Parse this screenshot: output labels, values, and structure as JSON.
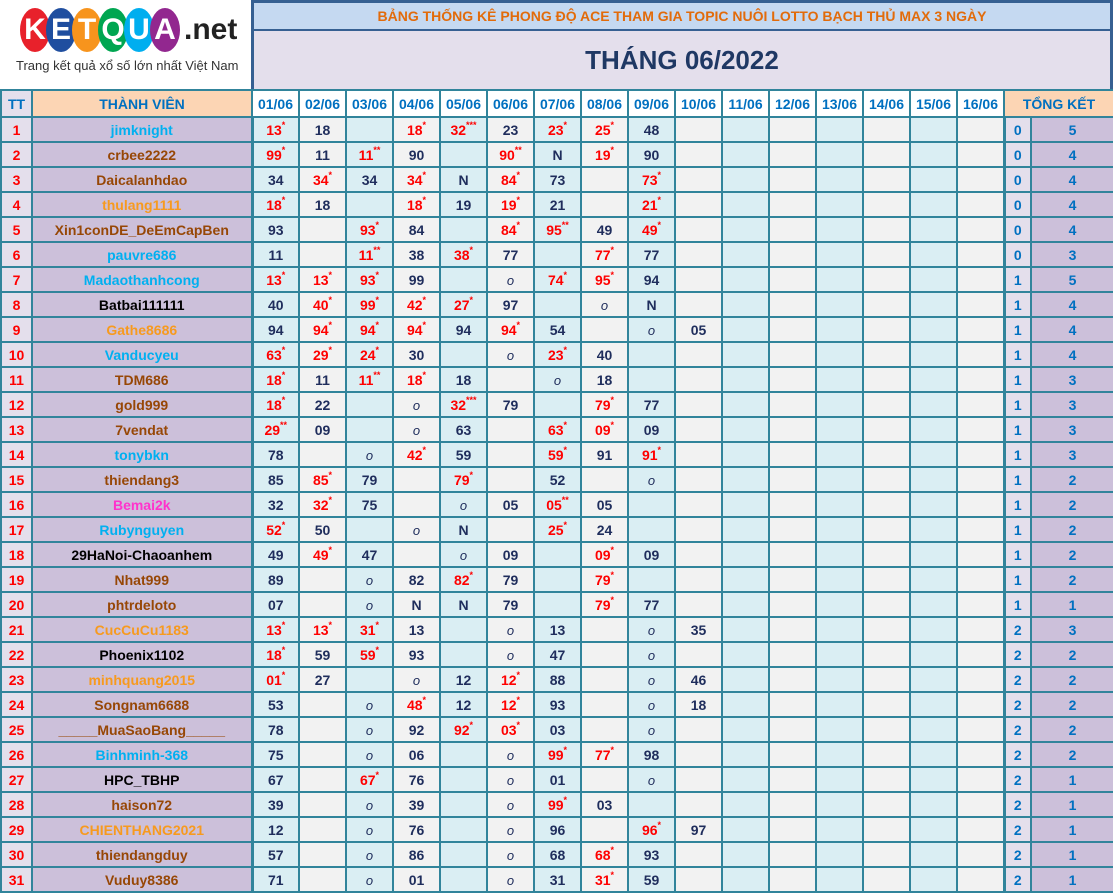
{
  "logo": {
    "letters": [
      "K",
      "E",
      "T",
      "Q",
      "U",
      "A"
    ],
    "letter_colors": [
      "#e8212b",
      "#1f4e9f",
      "#f7941d",
      "#00a651",
      "#00aeef",
      "#92278f"
    ],
    "suffix": ".net",
    "tagline": "Trang kết quả xổ số lớn nhất Việt Nam"
  },
  "header": {
    "title": "BẢNG THỐNG KÊ PHONG ĐỘ ACE THAM GIA TOPIC NUÔI LOTTO BẠCH THỦ MAX 3 NGÀY",
    "month": "THÁNG 06/2022"
  },
  "columns": {
    "tt": "TT",
    "member": "THÀNH VIÊN",
    "dates": [
      "01/06",
      "02/06",
      "03/06",
      "04/06",
      "05/06",
      "06/06",
      "07/06",
      "08/06",
      "09/06",
      "10/06",
      "11/06",
      "12/06",
      "13/06",
      "14/06",
      "15/06",
      "16/06"
    ],
    "summary": "TỔNG KẾT"
  },
  "name_colors": {
    "cyan": "#00b0f0",
    "brown": "#974706",
    "orange": "#f79a1e",
    "black": "#000000",
    "magenta": "#ff33cc"
  },
  "rows": [
    {
      "tt": "1",
      "name": "jimknight",
      "color": "cyan",
      "cells": [
        "13*",
        "18",
        "",
        "18*",
        "32***",
        "23",
        "23*",
        "25*",
        "48",
        "",
        "",
        "",
        "",
        "",
        "",
        ""
      ],
      "t1": "0",
      "t2": "5"
    },
    {
      "tt": "2",
      "name": "crbee2222",
      "color": "brown",
      "cells": [
        "99*",
        "11",
        "11**",
        "90",
        "",
        "90**",
        "N",
        "19*",
        "90",
        "",
        "",
        "",
        "",
        "",
        "",
        ""
      ],
      "t1": "0",
      "t2": "4"
    },
    {
      "tt": "3",
      "name": "Daicalanhdao",
      "color": "brown",
      "cells": [
        "34",
        "34*",
        "34",
        "34*",
        "N",
        "84*",
        "73",
        "",
        "73*",
        "",
        "",
        "",
        "",
        "",
        "",
        ""
      ],
      "t1": "0",
      "t2": "4"
    },
    {
      "tt": "4",
      "name": "thulang1111",
      "color": "orange",
      "cells": [
        "18*",
        "18",
        "",
        "18*",
        "19",
        "19*",
        "21",
        "",
        "21*",
        "",
        "",
        "",
        "",
        "",
        "",
        ""
      ],
      "t1": "0",
      "t2": "4"
    },
    {
      "tt": "5",
      "name": "Xin1conDE_DeEmCapBen",
      "color": "brown",
      "cells": [
        "93",
        "",
        "93*",
        "84",
        "",
        "84*",
        "95**",
        "49",
        "49*",
        "",
        "",
        "",
        "",
        "",
        "",
        ""
      ],
      "t1": "0",
      "t2": "4"
    },
    {
      "tt": "6",
      "name": "pauvre686",
      "color": "cyan",
      "cells": [
        "11",
        "",
        "11**",
        "38",
        "38*",
        "77",
        "",
        "77*",
        "77",
        "",
        "",
        "",
        "",
        "",
        "",
        ""
      ],
      "t1": "0",
      "t2": "3"
    },
    {
      "tt": "7",
      "name": "Madaothanhcong",
      "color": "cyan",
      "cells": [
        "13*",
        "13*",
        "93*",
        "99",
        "",
        "o",
        "74*",
        "95*",
        "94",
        "",
        "",
        "",
        "",
        "",
        "",
        ""
      ],
      "t1": "1",
      "t2": "5"
    },
    {
      "tt": "8",
      "name": "Batbai111111",
      "color": "black",
      "cells": [
        "40",
        "40*",
        "99*",
        "42*",
        "27*",
        "97",
        "",
        "o",
        "N",
        "",
        "",
        "",
        "",
        "",
        "",
        ""
      ],
      "t1": "1",
      "t2": "4"
    },
    {
      "tt": "9",
      "name": "Gathe8686",
      "color": "orange",
      "cells": [
        "94",
        "94*",
        "94*",
        "94*",
        "94",
        "94*",
        "54",
        "",
        "o",
        "05",
        "",
        "",
        "",
        "",
        "",
        ""
      ],
      "t1": "1",
      "t2": "4"
    },
    {
      "tt": "10",
      "name": "Vanducyeu",
      "color": "cyan",
      "cells": [
        "63*",
        "29*",
        "24*",
        "30",
        "",
        "o",
        "23*",
        "40",
        "",
        "",
        "",
        "",
        "",
        "",
        "",
        ""
      ],
      "t1": "1",
      "t2": "4"
    },
    {
      "tt": "11",
      "name": "TDM686",
      "color": "brown",
      "cells": [
        "18*",
        "11",
        "11**",
        "18*",
        "18",
        "",
        "o",
        "18",
        "",
        "",
        "",
        "",
        "",
        "",
        "",
        ""
      ],
      "t1": "1",
      "t2": "3"
    },
    {
      "tt": "12",
      "name": "gold999",
      "color": "brown",
      "cells": [
        "18*",
        "22",
        "",
        "o",
        "32***",
        "79",
        "",
        "79*",
        "77",
        "",
        "",
        "",
        "",
        "",
        "",
        ""
      ],
      "t1": "1",
      "t2": "3"
    },
    {
      "tt": "13",
      "name": "7vendat",
      "color": "brown",
      "cells": [
        "29**",
        "09",
        "",
        "o",
        "63",
        "",
        "63*",
        "09*",
        "09",
        "",
        "",
        "",
        "",
        "",
        "",
        ""
      ],
      "t1": "1",
      "t2": "3"
    },
    {
      "tt": "14",
      "name": "tonybkn",
      "color": "cyan",
      "cells": [
        "78",
        "",
        "o",
        "42*",
        "59",
        "",
        "59*",
        "91",
        "91*",
        "",
        "",
        "",
        "",
        "",
        "",
        ""
      ],
      "t1": "1",
      "t2": "3"
    },
    {
      "tt": "15",
      "name": "thiendang3",
      "color": "brown",
      "cells": [
        "85",
        "85*",
        "79",
        "",
        "79*",
        "",
        "52",
        "",
        "o",
        "",
        "",
        "",
        "",
        "",
        "",
        ""
      ],
      "t1": "1",
      "t2": "2"
    },
    {
      "tt": "16",
      "name": "Bemai2k",
      "color": "magenta",
      "cells": [
        "32",
        "32*",
        "75",
        "",
        "o",
        "05",
        "05**",
        "05",
        "",
        "",
        "",
        "",
        "",
        "",
        "",
        ""
      ],
      "t1": "1",
      "t2": "2"
    },
    {
      "tt": "17",
      "name": "Rubynguyen",
      "color": "cyan",
      "cells": [
        "52*",
        "50",
        "",
        "o",
        "N",
        "",
        "25*",
        "24",
        "",
        "",
        "",
        "",
        "",
        "",
        "",
        ""
      ],
      "t1": "1",
      "t2": "2"
    },
    {
      "tt": "18",
      "name": "29HaNoi-Chaoanhem",
      "color": "black",
      "cells": [
        "49",
        "49*",
        "47",
        "",
        "o",
        "09",
        "",
        "09*",
        "09",
        "",
        "",
        "",
        "",
        "",
        "",
        ""
      ],
      "t1": "1",
      "t2": "2"
    },
    {
      "tt": "19",
      "name": "Nhat999",
      "color": "brown",
      "cells": [
        "89",
        "",
        "o",
        "82",
        "82*",
        "79",
        "",
        "79*",
        "",
        "",
        "",
        "",
        "",
        "",
        "",
        ""
      ],
      "t1": "1",
      "t2": "2"
    },
    {
      "tt": "20",
      "name": "phtrdeloto",
      "color": "brown",
      "cells": [
        "07",
        "",
        "o",
        "N",
        "N",
        "79",
        "",
        "79*",
        "77",
        "",
        "",
        "",
        "",
        "",
        "",
        ""
      ],
      "t1": "1",
      "t2": "1"
    },
    {
      "tt": "21",
      "name": "CucCuCu1183",
      "color": "orange",
      "cells": [
        "13*",
        "13*",
        "31*",
        "13",
        "",
        "o",
        "13",
        "",
        "o",
        "35",
        "",
        "",
        "",
        "",
        "",
        ""
      ],
      "t1": "2",
      "t2": "3"
    },
    {
      "tt": "22",
      "name": "Phoenix1102",
      "color": "black",
      "cells": [
        "18*",
        "59",
        "59*",
        "93",
        "",
        "o",
        "47",
        "",
        "o",
        "",
        "",
        "",
        "",
        "",
        "",
        ""
      ],
      "t1": "2",
      "t2": "2"
    },
    {
      "tt": "23",
      "name": "minhquang2015",
      "color": "orange",
      "cells": [
        "01*",
        "27",
        "",
        "o",
        "12",
        "12*",
        "88",
        "",
        "o",
        "46",
        "",
        "",
        "",
        "",
        "",
        ""
      ],
      "t1": "2",
      "t2": "2"
    },
    {
      "tt": "24",
      "name": "Songnam6688",
      "color": "brown",
      "cells": [
        "53",
        "",
        "o",
        "48*",
        "12",
        "12*",
        "93",
        "",
        "o",
        "18",
        "",
        "",
        "",
        "",
        "",
        ""
      ],
      "t1": "2",
      "t2": "2"
    },
    {
      "tt": "25",
      "name": "_____MuaSaoBang_____",
      "color": "brown",
      "cells": [
        "78",
        "",
        "o",
        "92",
        "92*",
        "03*",
        "03",
        "",
        "o",
        "",
        "",
        "",
        "",
        "",
        "",
        ""
      ],
      "t1": "2",
      "t2": "2"
    },
    {
      "tt": "26",
      "name": "Binhminh-368",
      "color": "cyan",
      "cells": [
        "75",
        "",
        "o",
        "06",
        "",
        "o",
        "99*",
        "77*",
        "98",
        "",
        "",
        "",
        "",
        "",
        "",
        ""
      ],
      "t1": "2",
      "t2": "2"
    },
    {
      "tt": "27",
      "name": "HPC_TBHP",
      "color": "black",
      "cells": [
        "67",
        "",
        "67*",
        "76",
        "",
        "o",
        "01",
        "",
        "o",
        "",
        "",
        "",
        "",
        "",
        "",
        ""
      ],
      "t1": "2",
      "t2": "1"
    },
    {
      "tt": "28",
      "name": "haison72",
      "color": "brown",
      "cells": [
        "39",
        "",
        "o",
        "39",
        "",
        "o",
        "99*",
        "03",
        "",
        "",
        "",
        "",
        "",
        "",
        "",
        ""
      ],
      "t1": "2",
      "t2": "1"
    },
    {
      "tt": "29",
      "name": "CHIENTHANG2021",
      "color": "orange",
      "cells": [
        "12",
        "",
        "o",
        "76",
        "",
        "o",
        "96",
        "",
        "96*",
        "97",
        "",
        "",
        "",
        "",
        "",
        ""
      ],
      "t1": "2",
      "t2": "1"
    },
    {
      "tt": "30",
      "name": "thiendangduy",
      "color": "brown",
      "cells": [
        "57",
        "",
        "o",
        "86",
        "",
        "o",
        "68",
        "68*",
        "93",
        "",
        "",
        "",
        "",
        "",
        "",
        ""
      ],
      "t1": "2",
      "t2": "1"
    },
    {
      "tt": "31",
      "name": "Vuduy8386",
      "color": "brown",
      "cells": [
        "71",
        "",
        "o",
        "01",
        "",
        "o",
        "31",
        "31*",
        "59",
        "",
        "",
        "",
        "",
        "",
        "",
        ""
      ],
      "t1": "2",
      "t2": "1"
    }
  ]
}
